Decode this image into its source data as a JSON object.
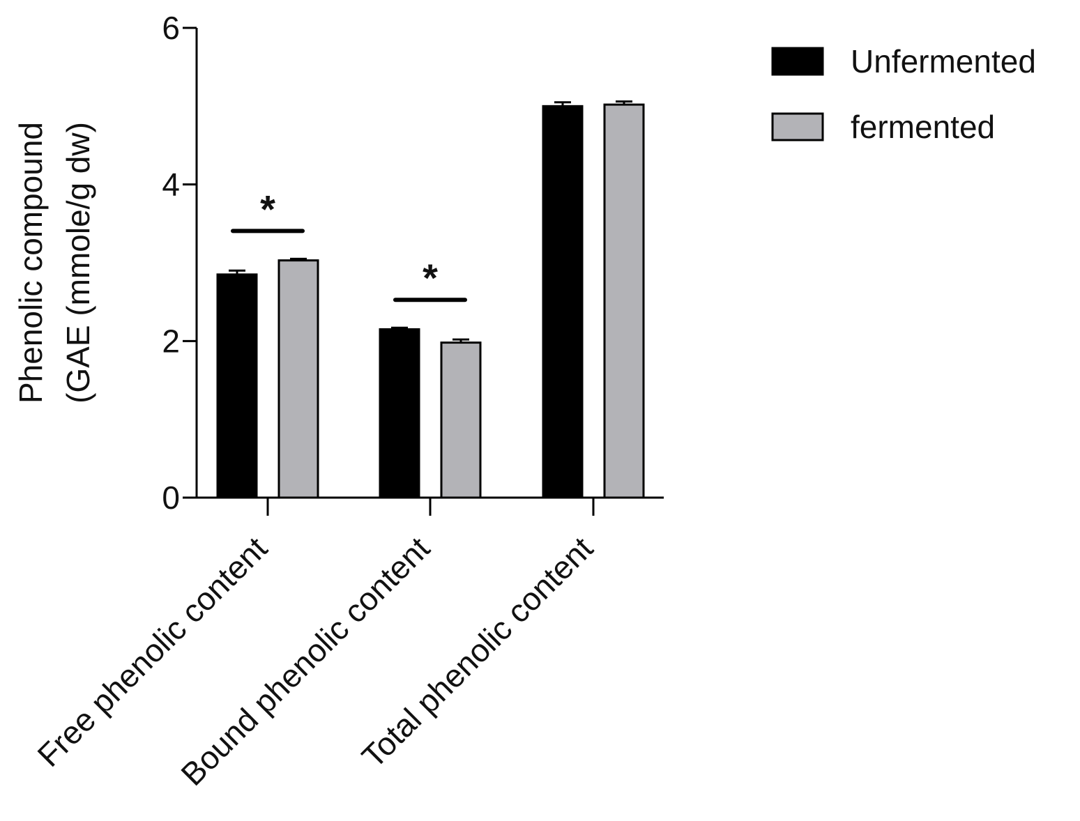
{
  "chart_data": {
    "type": "bar",
    "ylabel_lines": [
      "Phenolic compound",
      "(GAE (mmole/g dw)"
    ],
    "ylim": [
      0,
      6
    ],
    "yticks": [
      0,
      2,
      4,
      6
    ],
    "categories": [
      "Free phenolic content",
      "Bound phenolic content",
      "Total phenolic content"
    ],
    "series": [
      {
        "name": "Unfermented",
        "color": "#000000",
        "values": [
          2.85,
          2.15,
          5.0
        ],
        "errors": [
          0.05,
          0.02,
          0.05
        ]
      },
      {
        "name": "fermented",
        "color": "#b3b3b7",
        "values": [
          3.03,
          1.98,
          5.02
        ],
        "errors": [
          0.02,
          0.04,
          0.04
        ]
      }
    ],
    "significance": [
      {
        "category_index": 0,
        "label": "*"
      },
      {
        "category_index": 1,
        "label": "*"
      }
    ],
    "legend_position": "top-right",
    "grid": false
  }
}
